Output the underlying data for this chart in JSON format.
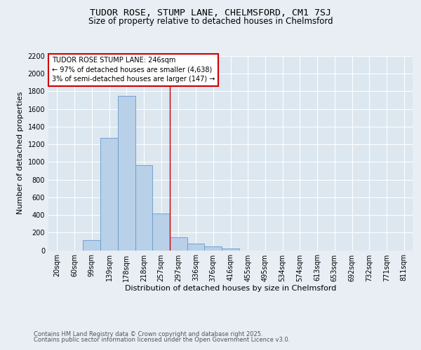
{
  "title": "TUDOR ROSE, STUMP LANE, CHELMSFORD, CM1 7SJ",
  "subtitle": "Size of property relative to detached houses in Chelmsford",
  "xlabel": "Distribution of detached houses by size in Chelmsford",
  "ylabel": "Number of detached properties",
  "bins": [
    "20sqm",
    "60sqm",
    "99sqm",
    "139sqm",
    "178sqm",
    "218sqm",
    "257sqm",
    "297sqm",
    "336sqm",
    "376sqm",
    "416sqm",
    "455sqm",
    "495sqm",
    "534sqm",
    "574sqm",
    "613sqm",
    "653sqm",
    "692sqm",
    "732sqm",
    "771sqm",
    "811sqm"
  ],
  "values": [
    0,
    0,
    115,
    1275,
    1750,
    960,
    420,
    150,
    75,
    40,
    20,
    0,
    0,
    0,
    0,
    0,
    0,
    0,
    0,
    0,
    0
  ],
  "bar_color": "#b8d0e8",
  "bar_edge_color": "#6699cc",
  "vline_x": 6.5,
  "vline_color": "#cc0000",
  "annotation_title": "TUDOR ROSE STUMP LANE: 246sqm",
  "annotation_line2": "← 97% of detached houses are smaller (4,638)",
  "annotation_line3": "3% of semi-detached houses are larger (147) →",
  "annotation_box_color": "#cc0000",
  "annotation_box_fill": "#ffffff",
  "ylim": [
    0,
    2200
  ],
  "yticks": [
    0,
    200,
    400,
    600,
    800,
    1000,
    1200,
    1400,
    1600,
    1800,
    2000,
    2200
  ],
  "background_color": "#e8eef4",
  "plot_background": "#dce7f0",
  "footer_line1": "Contains HM Land Registry data © Crown copyright and database right 2025.",
  "footer_line2": "Contains public sector information licensed under the Open Government Licence v3.0.",
  "title_fontsize": 9.5,
  "subtitle_fontsize": 8.5,
  "axis_label_fontsize": 8,
  "tick_fontsize": 7,
  "annotation_fontsize": 7,
  "footer_fontsize": 6
}
